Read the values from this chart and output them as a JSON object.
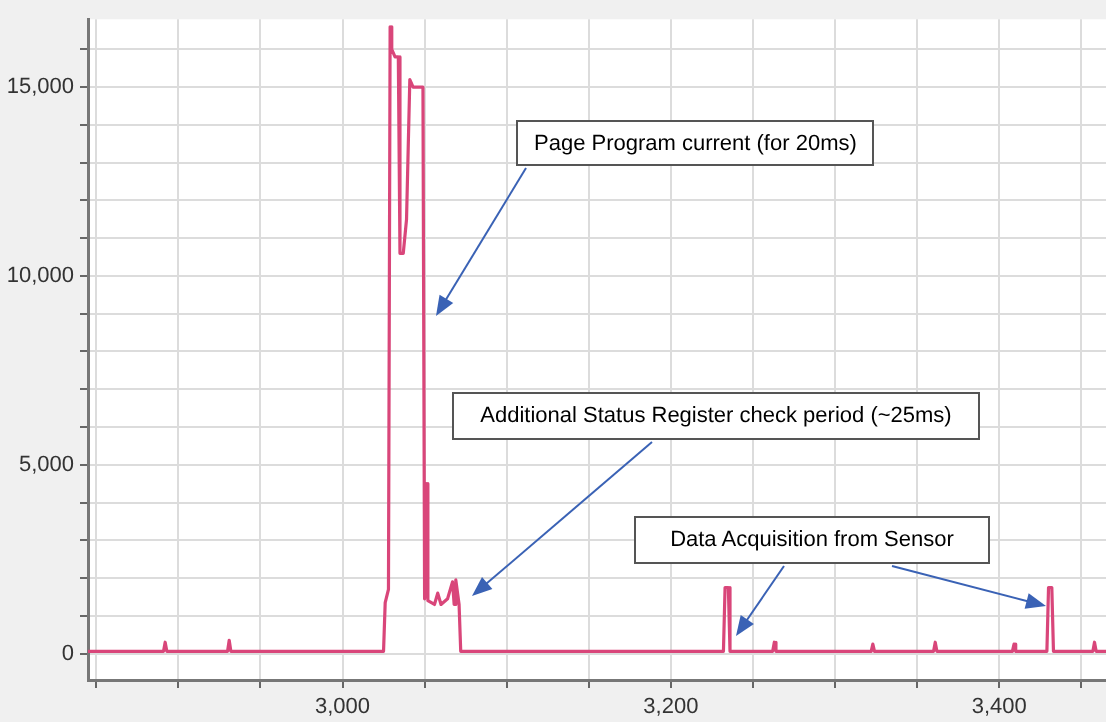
{
  "chart_data": {
    "type": "line",
    "xlim": [
      2845,
      3465
    ],
    "xticks": [
      {
        "value": 2850,
        "label": null
      },
      {
        "value": 2900,
        "label": null
      },
      {
        "value": 2950,
        "label": null
      },
      {
        "value": 3000,
        "label": "3,000"
      },
      {
        "value": 3050,
        "label": null
      },
      {
        "value": 3100,
        "label": null
      },
      {
        "value": 3150,
        "label": null
      },
      {
        "value": 3200,
        "label": "3,200"
      },
      {
        "value": 3250,
        "label": null
      },
      {
        "value": 3300,
        "label": null
      },
      {
        "value": 3350,
        "label": null
      },
      {
        "value": 3400,
        "label": "3,400"
      },
      {
        "value": 3450,
        "label": null
      }
    ],
    "ylim": [
      -700,
      16800
    ],
    "yticks": [
      {
        "value": 0,
        "label": "0"
      },
      {
        "value": 1000,
        "label": null
      },
      {
        "value": 2000,
        "label": null
      },
      {
        "value": 3000,
        "label": null
      },
      {
        "value": 4000,
        "label": null
      },
      {
        "value": 5000,
        "label": "5,000"
      },
      {
        "value": 6000,
        "label": null
      },
      {
        "value": 7000,
        "label": null
      },
      {
        "value": 8000,
        "label": null
      },
      {
        "value": 9000,
        "label": null
      },
      {
        "value": 10000,
        "label": "10,000"
      },
      {
        "value": 11000,
        "label": null
      },
      {
        "value": 12000,
        "label": null
      },
      {
        "value": 13000,
        "label": null
      },
      {
        "value": 14000,
        "label": null
      },
      {
        "value": 15000,
        "label": "15,000"
      },
      {
        "value": 16000,
        "label": null
      }
    ],
    "grid": true,
    "legend": false,
    "marker": "none",
    "line_style": "solid",
    "series": [
      {
        "color": "#d9467a",
        "x": [
          2845,
          2891,
          2892,
          2893,
          2930,
          2931,
          2932,
          3025,
          3026,
          3028,
          3029,
          3030,
          3032,
          3034,
          3035,
          3037,
          3039,
          3041,
          3043,
          3049,
          3050,
          3051,
          3052,
          3056,
          3058,
          3060,
          3064,
          3067,
          3068,
          3069,
          3071,
          3072,
          3232,
          3233,
          3235,
          3236,
          3262,
          3263,
          3264,
          3322,
          3323,
          3324,
          3360,
          3361,
          3362,
          3408,
          3409,
          3410,
          3429,
          3430,
          3432,
          3433,
          3457,
          3458,
          3459,
          3465
        ],
        "values": [
          60,
          60,
          300,
          60,
          60,
          350,
          60,
          60,
          1350,
          1700,
          16600,
          16000,
          15800,
          15800,
          10600,
          10600,
          11500,
          15200,
          15000,
          15000,
          1450,
          4500,
          1400,
          1300,
          1600,
          1300,
          1450,
          1900,
          1300,
          1950,
          1300,
          60,
          60,
          1750,
          1750,
          60,
          60,
          300,
          60,
          60,
          250,
          60,
          60,
          300,
          60,
          60,
          250,
          60,
          60,
          1750,
          1750,
          60,
          60,
          300,
          60,
          60
        ]
      }
    ],
    "annotations": [
      "Page Program current (for 20ms)",
      "Additional Status Register check period (~25ms)",
      "Data Acquisition from Sensor"
    ]
  }
}
